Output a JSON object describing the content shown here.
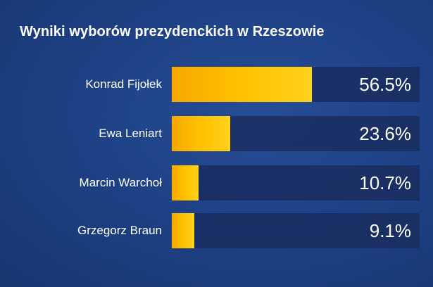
{
  "chart_data": {
    "type": "bar",
    "orientation": "horizontal",
    "title": "Wyniki wyborów prezydenckich w Rzeszowie",
    "categories": [
      "Konrad Fijołek",
      "Ewa Leniart",
      "Marcin Warchoł",
      "Grzegorz Braun"
    ],
    "values": [
      56.5,
      23.6,
      10.7,
      9.1
    ],
    "value_labels": [
      "56.5%",
      "23.6%",
      "10.7%",
      "9.1%"
    ],
    "xlim": [
      0,
      100
    ],
    "grid": false,
    "legend": "none",
    "colors": {
      "bar": "#ffc000",
      "track": "#1a2d5f",
      "background": "#1d3f82",
      "text": "#ffffff"
    }
  }
}
